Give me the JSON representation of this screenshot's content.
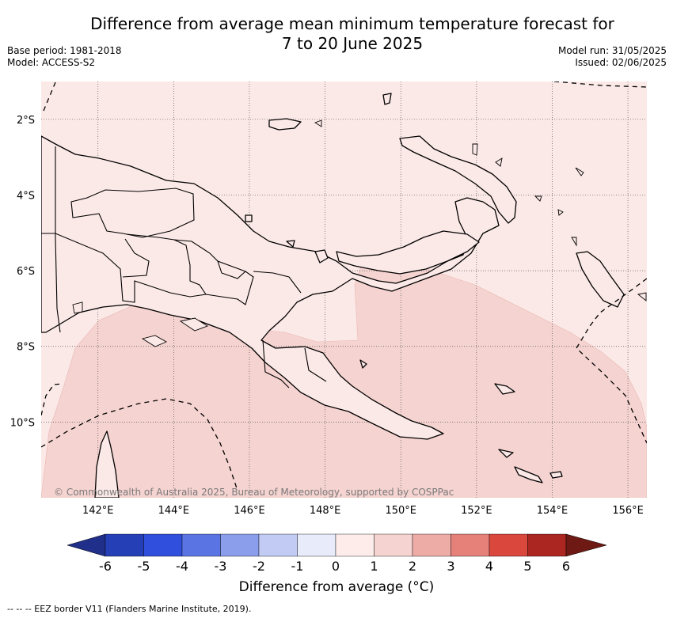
{
  "header": {
    "title_line1": "Difference from average mean minimum temperature forecast for",
    "title_line2": "7 to 20 June 2025",
    "base_period": "Base period: 1981-2018",
    "model": "Model: ACCESS-S2",
    "model_run": "Model run: 31/05/2025",
    "issued": "Issued: 02/06/2025"
  },
  "map": {
    "lat_range": [
      -12,
      -1
    ],
    "lon_range": [
      140.5,
      156.5
    ],
    "lat_ticks": [
      "2°S",
      "4°S",
      "6°S",
      "8°S",
      "10°S"
    ],
    "lon_ticks": [
      "142°E",
      "144°E",
      "146°E",
      "148°E",
      "150°E",
      "152°E",
      "154°E",
      "156°E"
    ],
    "copyright": "© Commonwealth of Australia 2025, Bureau of Meteorology, supported by COSPPac",
    "region_colors": {
      "0 to 1": "#fbe9e7",
      "1 to 2": "#f5d3d0"
    }
  },
  "colorbar": {
    "ticks": [
      "-6",
      "-5",
      "-4",
      "-3",
      "-2",
      "-1",
      "0",
      "1",
      "2",
      "3",
      "4",
      "5",
      "6"
    ],
    "colors": [
      "#1f2f8a",
      "#2540b6",
      "#2f4fdc",
      "#5a74e4",
      "#8a9eec",
      "#c1cbf4",
      "#e7ebfa",
      "#fdecea",
      "#f5d3d0",
      "#eeaca6",
      "#e6817a",
      "#d9473d",
      "#ab2620",
      "#6e1913"
    ],
    "label": "Difference from average (°C)"
  },
  "footer": {
    "eez_legend": "--  --  -- EEZ border V11 (Flanders Marine Institute, 2019)."
  }
}
